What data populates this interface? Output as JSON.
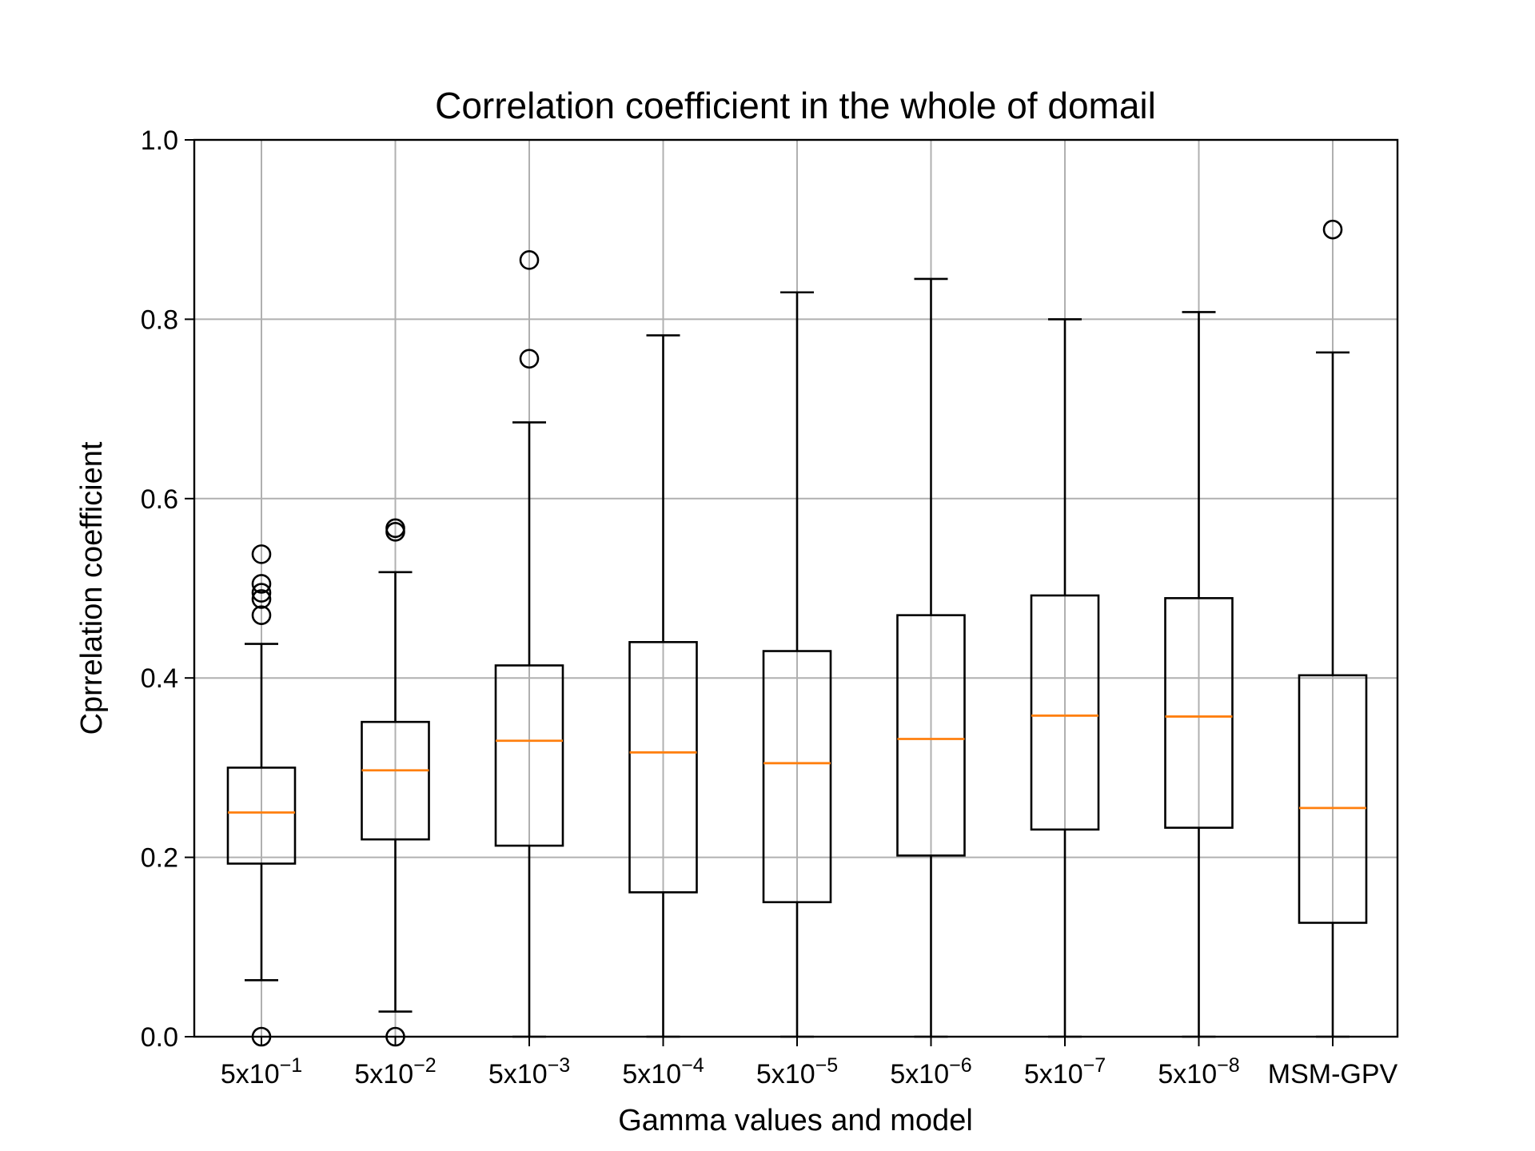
{
  "chart_data": {
    "type": "box",
    "title": "Correlation coefficient in the whole of domail",
    "xlabel": "Gamma values and model",
    "ylabel": "Cprrelation coefficient",
    "ylim": [
      0,
      1.0
    ],
    "yticks": [
      "0.0",
      "0.2",
      "0.4",
      "0.6",
      "0.8",
      "1.0"
    ],
    "grid": true,
    "categories": [
      {
        "base": "5x10",
        "exp": "−1",
        "label": "5x10^-1"
      },
      {
        "base": "5x10",
        "exp": "−2",
        "label": "5x10^-2"
      },
      {
        "base": "5x10",
        "exp": "−3",
        "label": "5x10^-3"
      },
      {
        "base": "5x10",
        "exp": "−4",
        "label": "5x10^-4"
      },
      {
        "base": "5x10",
        "exp": "−5",
        "label": "5x10^-5"
      },
      {
        "base": "5x10",
        "exp": "−6",
        "label": "5x10^-6"
      },
      {
        "base": "5x10",
        "exp": "−7",
        "label": "5x10^-7"
      },
      {
        "base": "5x10",
        "exp": "−8",
        "label": "5x10^-8"
      },
      {
        "base": "MSM-GPV",
        "exp": "",
        "label": "MSM-GPV"
      }
    ],
    "boxes": [
      {
        "whislo": 0.063,
        "q1": 0.193,
        "med": 0.25,
        "q3": 0.3,
        "whishi": 0.438,
        "fliers": [
          0.538,
          0.505,
          0.495,
          0.488,
          0.47,
          0.0
        ]
      },
      {
        "whislo": 0.028,
        "q1": 0.22,
        "med": 0.297,
        "q3": 0.351,
        "whishi": 0.518,
        "fliers": [
          0.567,
          0.563,
          0.0
        ]
      },
      {
        "whislo": 0.0,
        "q1": 0.213,
        "med": 0.33,
        "q3": 0.414,
        "whishi": 0.685,
        "fliers": [
          0.866,
          0.756
        ]
      },
      {
        "whislo": 0.0,
        "q1": 0.161,
        "med": 0.317,
        "q3": 0.44,
        "whishi": 0.782,
        "fliers": []
      },
      {
        "whislo": 0.0,
        "q1": 0.15,
        "med": 0.305,
        "q3": 0.43,
        "whishi": 0.83,
        "fliers": []
      },
      {
        "whislo": 0.0,
        "q1": 0.202,
        "med": 0.332,
        "q3": 0.47,
        "whishi": 0.845,
        "fliers": []
      },
      {
        "whislo": 0.0,
        "q1": 0.231,
        "med": 0.358,
        "q3": 0.492,
        "whishi": 0.8,
        "fliers": []
      },
      {
        "whislo": 0.0,
        "q1": 0.233,
        "med": 0.357,
        "q3": 0.489,
        "whishi": 0.808,
        "fliers": []
      },
      {
        "whislo": 0.0,
        "q1": 0.127,
        "med": 0.255,
        "q3": 0.403,
        "whishi": 0.763,
        "fliers": [
          0.9
        ]
      }
    ],
    "colors": {
      "box": "#000000",
      "median": "#ff7f0e",
      "grid": "#b0b0b0"
    }
  }
}
